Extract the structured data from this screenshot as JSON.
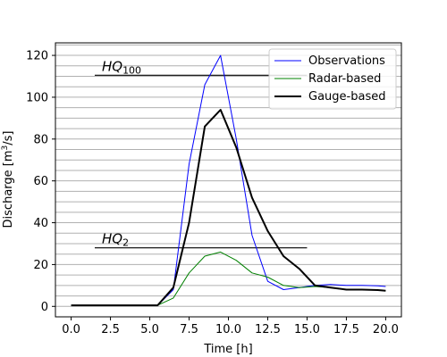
{
  "chart_data": {
    "type": "line",
    "xlabel": "Time [h]",
    "ylabel_main": "Discharge [m",
    "ylabel_sup": "3",
    "ylabel_end": "/s]",
    "xlim": [
      -1,
      21
    ],
    "ylim": [
      -5,
      126
    ],
    "x_ticks": [
      0,
      2.5,
      5,
      7.5,
      10,
      12.5,
      15,
      17.5,
      20
    ],
    "x_tick_labels": [
      "0.0",
      "2.5",
      "5.0",
      "7.5",
      "10.0",
      "12.5",
      "15.0",
      "17.5",
      "20.0"
    ],
    "y_ticks": [
      0,
      20,
      40,
      60,
      80,
      100,
      120
    ],
    "y_tick_labels": [
      "0",
      "20",
      "40",
      "60",
      "80",
      "100",
      "120"
    ],
    "y_minor_step": 5,
    "grid": "horizontal-minor",
    "legend_position": "top-right",
    "series": [
      {
        "name": "Observations",
        "color": "#0000ff",
        "width": 1,
        "x": [
          0,
          1,
          2,
          3,
          4,
          5,
          5.5,
          6.5,
          7.5,
          8.5,
          9.5,
          10.5,
          11.5,
          12.5,
          13.5,
          14.5,
          15.5,
          16.5,
          17.5,
          18.5,
          19.5,
          20
        ],
        "y": [
          0.5,
          0.5,
          0.5,
          0.5,
          0.5,
          0.5,
          0.5,
          8,
          68,
          106,
          120,
          80,
          34,
          12,
          8,
          9,
          10,
          10.5,
          10,
          10,
          9.8,
          9.5
        ]
      },
      {
        "name": "Radar-based",
        "color": "#008000",
        "width": 1,
        "x": [
          0,
          1,
          2,
          3,
          4,
          5,
          5.5,
          6.5,
          7.5,
          8.5,
          9.5,
          10.5,
          11.5,
          12.5,
          13.5,
          14.5,
          15.5,
          16.5,
          17.5,
          18.5,
          19.5,
          20
        ],
        "y": [
          0.5,
          0.5,
          0.5,
          0.5,
          0.5,
          0.5,
          0.5,
          4,
          16,
          24,
          26,
          22,
          16,
          14,
          10,
          9,
          9.5,
          9,
          8,
          8,
          7.8,
          7.5
        ]
      },
      {
        "name": "Gauge-based",
        "color": "#000000",
        "width": 2,
        "x": [
          0,
          1,
          2,
          3,
          4,
          5,
          5.5,
          6.5,
          7.5,
          8.5,
          9.5,
          10.5,
          11.5,
          12.5,
          13.5,
          14.5,
          15.5,
          16.5,
          17.5,
          18.5,
          19.5,
          20
        ],
        "y": [
          0.5,
          0.5,
          0.5,
          0.5,
          0.5,
          0.5,
          0.5,
          9,
          40,
          86,
          94,
          76,
          52,
          36,
          24,
          18,
          10,
          9,
          8,
          8,
          7.8,
          7.5
        ]
      }
    ],
    "reference_lines": [
      {
        "label_base": "HQ",
        "label_sub": "100",
        "y": 110.5,
        "x_start": 1.5,
        "x_end": 15
      },
      {
        "label_base": "HQ",
        "label_sub": "2",
        "y": 28,
        "x_start": 1.5,
        "x_end": 15
      }
    ]
  }
}
